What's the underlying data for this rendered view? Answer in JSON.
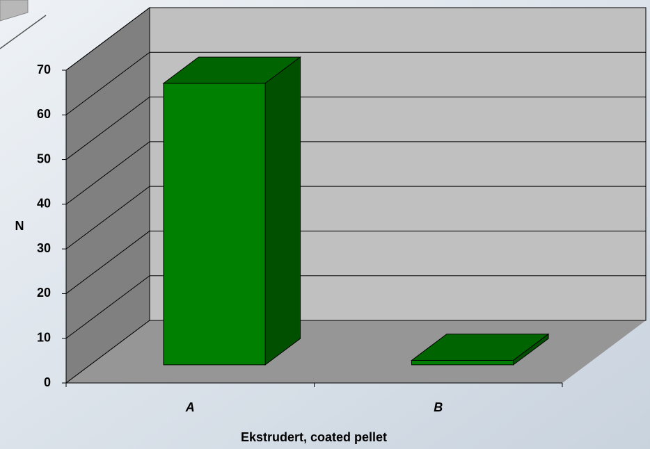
{
  "chart_data": {
    "type": "bar",
    "categories": [
      "A",
      "B"
    ],
    "values": [
      63,
      1
    ],
    "color": "#008000",
    "ylim": [
      0,
      70
    ],
    "yticks": [
      0,
      10,
      20,
      30,
      40,
      50,
      60,
      70
    ],
    "ylabel": "N",
    "xlabel": "Ekstrudert, coated pellet",
    "grid": true
  }
}
